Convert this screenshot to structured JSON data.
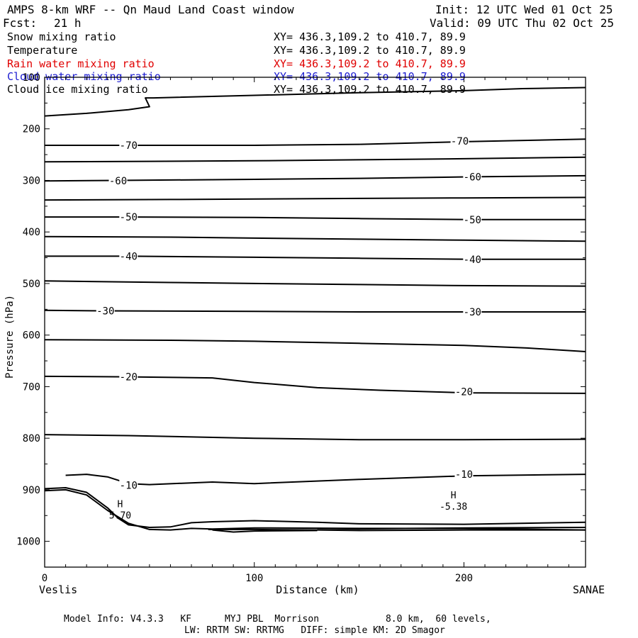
{
  "header": {
    "title": "AMPS 8-km WRF -- Qn Maud Land Coast window",
    "init": "Init: 12 UTC Wed 01 Oct 25",
    "fcst_label": "Fcst:",
    "fcst_value": "21 h",
    "valid": "Valid: 09 UTC Thu 02 Oct 25"
  },
  "legend": [
    {
      "name": "Snow mixing ratio",
      "xy": "XY= 436.3,109.2 to 410.7, 89.9",
      "color": "#000000"
    },
    {
      "name": "Temperature",
      "xy": "XY= 436.3,109.2 to 410.7, 89.9",
      "color": "#000000"
    },
    {
      "name": "Rain water mixing ratio",
      "xy": "XY= 436.3,109.2 to 410.7, 89.9",
      "color": "#e00000"
    },
    {
      "name": "Cloud water mixing ratio",
      "xy": "XY= 436.3,109.2 to 410.7, 89.9",
      "color": "#1a1ad0"
    },
    {
      "name": "Cloud ice mixing ratio",
      "xy": "XY= 436.3,109.2 to 410.7, 89.9",
      "color": "#000000"
    }
  ],
  "axis_labels": {
    "x_left_station": "Veslis",
    "x_right_station": "SANAE"
  },
  "footer": {
    "line1": "Model Info: V4.3.3   KF      MYJ PBL  Morrison            8.0 km,  60 levels,",
    "line2": "LW: RRTM SW: RRTMG   DIFF: simple KM: 2D Smagor"
  },
  "chart_data": {
    "type": "line",
    "xlabel": "Distance (km)",
    "ylabel": "Pressure (hPa)",
    "xlim": [
      0,
      258
    ],
    "ylim": [
      1050,
      100
    ],
    "xticks": [
      0,
      100,
      200
    ],
    "yticks": [
      100,
      200,
      300,
      400,
      500,
      600,
      700,
      800,
      900,
      1000
    ],
    "contour_labels": [
      {
        "text": "-70",
        "x": 40,
        "y": 232
      },
      {
        "text": "-70",
        "x": 198,
        "y": 224
      },
      {
        "text": "-60",
        "x": 35,
        "y": 301
      },
      {
        "text": "-60",
        "x": 204,
        "y": 293
      },
      {
        "text": "-50",
        "x": 40,
        "y": 371
      },
      {
        "text": "-50",
        "x": 204,
        "y": 376
      },
      {
        "text": "-40",
        "x": 40,
        "y": 447
      },
      {
        "text": "-40",
        "x": 204,
        "y": 453
      },
      {
        "text": "-30",
        "x": 29,
        "y": 553
      },
      {
        "text": "-30",
        "x": 204,
        "y": 555
      },
      {
        "text": "-20",
        "x": 40,
        "y": 681
      },
      {
        "text": "-20",
        "x": 200,
        "y": 710
      },
      {
        "text": "-10",
        "x": 40,
        "y": 891
      },
      {
        "text": "-10",
        "x": 200,
        "y": 870
      }
    ],
    "extrema": [
      {
        "symbol": "H",
        "value": "5.70",
        "x": 36,
        "y": 942
      },
      {
        "symbol": "H",
        "value": "-5.38",
        "x": 195,
        "y": 925
      }
    ],
    "series": [
      {
        "x": [
          0,
          20,
          40,
          50,
          48,
          52,
          100,
          150,
          200,
          228,
          258
        ],
        "y": [
          175,
          170,
          163,
          157,
          140,
          140,
          135,
          130,
          126,
          122,
          120
        ]
      },
      {
        "x": [
          0,
          40,
          100,
          150,
          200,
          258
        ],
        "y": [
          232,
          232,
          232,
          230,
          225,
          220
        ]
      },
      {
        "x": [
          0,
          50,
          100,
          150,
          200,
          258
        ],
        "y": [
          264,
          263,
          262,
          260,
          258,
          255
        ]
      },
      {
        "x": [
          0,
          35,
          100,
          150,
          204,
          258
        ],
        "y": [
          301,
          300,
          298,
          296,
          293,
          291
        ]
      },
      {
        "x": [
          0,
          60,
          100,
          150,
          200,
          258
        ],
        "y": [
          338,
          337,
          336,
          335,
          334,
          333
        ]
      },
      {
        "x": [
          0,
          40,
          100,
          150,
          204,
          258
        ],
        "y": [
          371,
          371,
          372,
          374,
          376,
          376
        ]
      },
      {
        "x": [
          0,
          60,
          100,
          150,
          200,
          258
        ],
        "y": [
          409,
          410,
          412,
          414,
          416,
          418
        ]
      },
      {
        "x": [
          0,
          40,
          100,
          150,
          204,
          258
        ],
        "y": [
          447,
          447,
          449,
          451,
          453,
          453
        ]
      },
      {
        "x": [
          0,
          60,
          100,
          150,
          200,
          258
        ],
        "y": [
          495,
          498,
          500,
          502,
          504,
          505
        ]
      },
      {
        "x": [
          0,
          29,
          100,
          150,
          204,
          258
        ],
        "y": [
          552,
          553,
          554,
          555,
          555,
          555
        ]
      },
      {
        "x": [
          0,
          60,
          100,
          150,
          200,
          230,
          258
        ],
        "y": [
          609,
          610,
          612,
          616,
          620,
          625,
          632
        ]
      },
      {
        "x": [
          0,
          40,
          80,
          100,
          130,
          160,
          200,
          258
        ],
        "y": [
          680,
          681,
          683,
          692,
          702,
          707,
          712,
          713
        ]
      },
      {
        "x": [
          0,
          40,
          100,
          150,
          200,
          258
        ],
        "y": [
          793,
          795,
          800,
          803,
          803,
          802
        ]
      },
      {
        "x": [
          10,
          20,
          30,
          40,
          50,
          80,
          100,
          150,
          200,
          258
        ],
        "y": [
          872,
          870,
          875,
          888,
          890,
          885,
          888,
          880,
          873,
          870
        ]
      },
      {
        "x": [
          0,
          10,
          20,
          30,
          35,
          40,
          50,
          60,
          70,
          80,
          100,
          130,
          150,
          200,
          258
        ],
        "y": [
          898,
          896,
          905,
          935,
          955,
          968,
          973,
          972,
          964,
          962,
          960,
          963,
          966,
          967,
          963
        ]
      },
      {
        "x": [
          0,
          10,
          20,
          30,
          40,
          50,
          60,
          70,
          80,
          100,
          150,
          200,
          258
        ],
        "y": [
          902,
          900,
          910,
          940,
          965,
          977,
          978,
          975,
          976,
          974,
          975,
          975,
          978
        ]
      },
      {
        "x": [
          78,
          100,
          130,
          150,
          200,
          258
        ],
        "y": [
          977,
          977,
          978,
          979,
          978,
          978
        ]
      },
      {
        "x": [
          80,
          90,
          100,
          130
        ],
        "y": [
          978,
          982,
          980,
          979
        ]
      },
      {
        "x": [
          130,
          150,
          200,
          258
        ],
        "y": [
          975,
          976,
          974,
          973
        ]
      }
    ]
  }
}
